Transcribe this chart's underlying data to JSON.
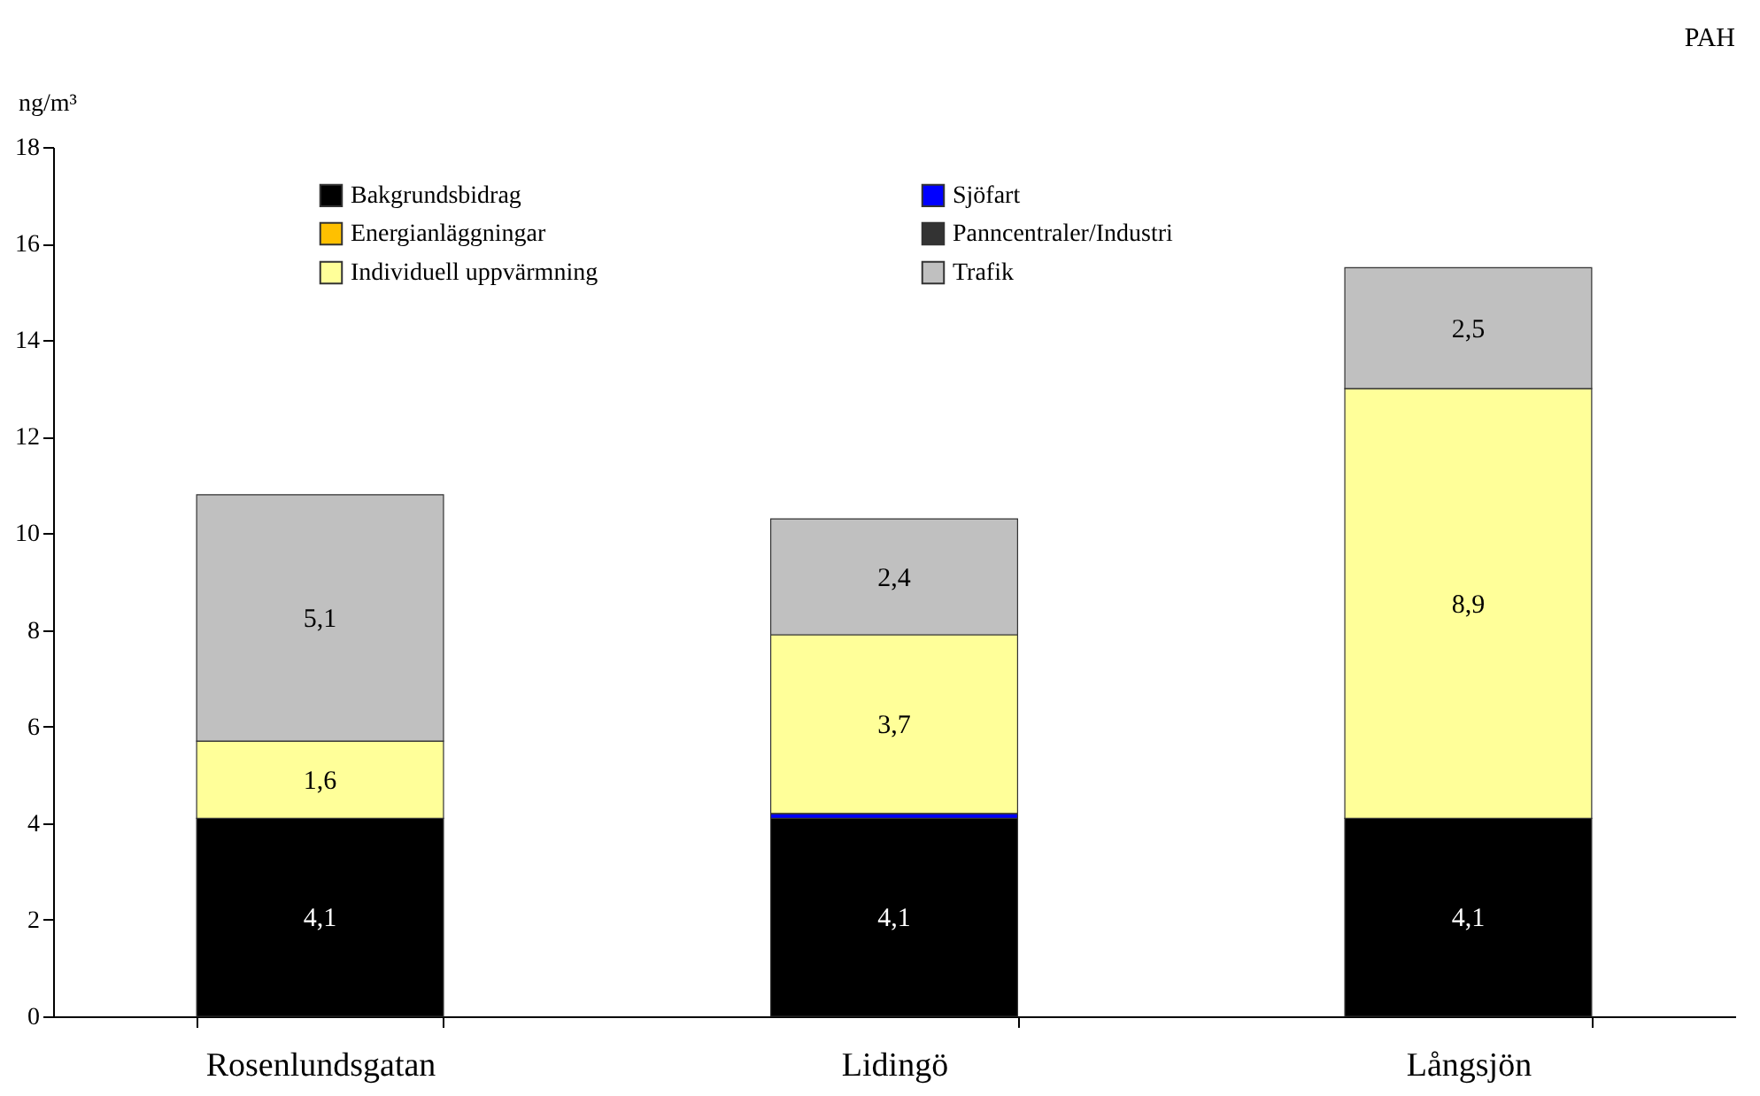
{
  "chart_data": {
    "type": "bar",
    "title": "PAH",
    "ylabel": "ng/m³",
    "stacked": true,
    "categories": [
      "Rosenlundsgatan",
      "Lidingö",
      "Långsjön"
    ],
    "series": [
      {
        "name": "Bakgrundsbidrag",
        "color": "#000000",
        "values": [
          4.1,
          4.1,
          4.1
        ],
        "value_labels": [
          "4,1",
          "4,1",
          "4,1"
        ]
      },
      {
        "name": "Sjöfart",
        "color": "#0000ff",
        "values": [
          0,
          0.1,
          0
        ]
      },
      {
        "name": "Energianläggningar",
        "color": "#ffc000",
        "values": [
          0,
          0,
          0
        ]
      },
      {
        "name": "Panncentraler/Industri",
        "color": "#333333",
        "values": [
          0,
          0,
          0
        ]
      },
      {
        "name": "Individuell uppvärmning",
        "color": "#ffff99",
        "values": [
          1.6,
          3.7,
          8.9
        ],
        "value_labels": [
          "1,6",
          "3,7",
          "8,9"
        ]
      },
      {
        "name": "Trafik",
        "color": "#c0c0c0",
        "values": [
          5.1,
          2.4,
          2.5
        ],
        "value_labels": [
          "5,1",
          "2,4",
          "2,5"
        ]
      }
    ],
    "ylim": [
      0,
      18
    ],
    "yticks": [
      0,
      2,
      4,
      6,
      8,
      10,
      12,
      14,
      16,
      18
    ],
    "grid": false,
    "legend": "top left"
  }
}
